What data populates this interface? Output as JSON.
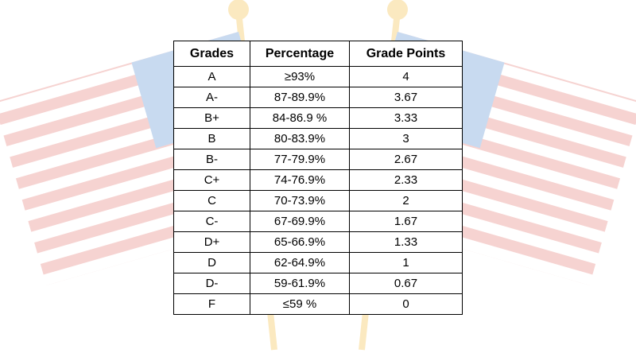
{
  "table": {
    "headers": {
      "grade": "Grades",
      "percentage": "Percentage",
      "points": "Grade Points"
    },
    "rows": [
      {
        "grade": "A",
        "percentage": "≥93%",
        "points": "4"
      },
      {
        "grade": "A-",
        "percentage": "87-89.9%",
        "points": "3.67"
      },
      {
        "grade": "B+",
        "percentage": "84-86.9 %",
        "points": "3.33"
      },
      {
        "grade": "B",
        "percentage": "80-83.9%",
        "points": "3"
      },
      {
        "grade": "B-",
        "percentage": "77-79.9%",
        "points": "2.67"
      },
      {
        "grade": "C+",
        "percentage": "74-76.9%",
        "points": "2.33"
      },
      {
        "grade": "C",
        "percentage": "70-73.9%",
        "points": "2"
      },
      {
        "grade": "C-",
        "percentage": "67-69.9%",
        "points": "1.67"
      },
      {
        "grade": "D+",
        "percentage": "65-66.9%",
        "points": "1.33"
      },
      {
        "grade": "D",
        "percentage": "62-64.9%",
        "points": "1"
      },
      {
        "grade": "D-",
        "percentage": "59-61.9%",
        "points": "0.67"
      },
      {
        "grade": "F",
        "percentage": "≤59 %",
        "points": "0"
      }
    ]
  },
  "background": {
    "flag_red": "#f6d3d1",
    "flag_blue": "#c8daf0",
    "flag_white": "#ffffff",
    "pole_gold": "#fbe9c0"
  }
}
